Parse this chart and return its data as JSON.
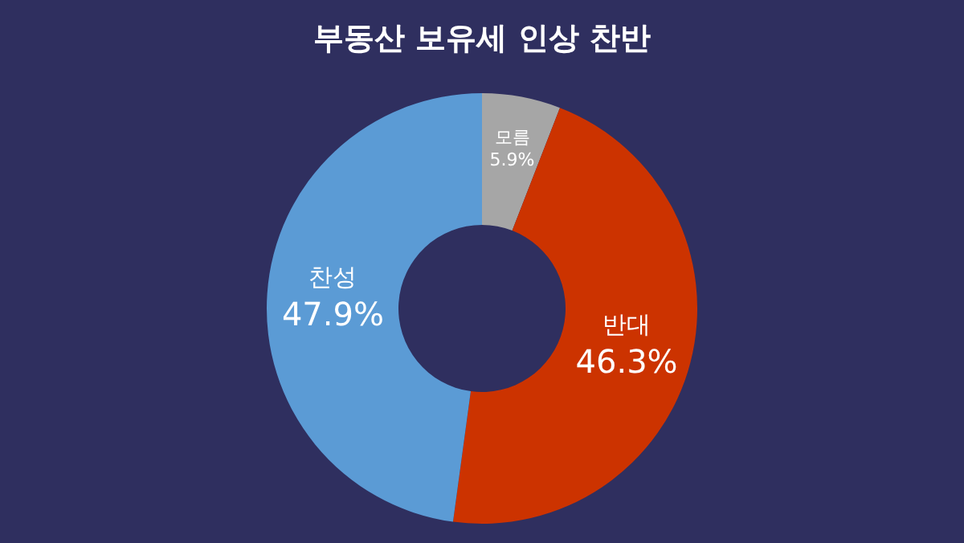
{
  "chart_data": {
    "type": "donut",
    "title": "부동산 보유세 인상 찬반",
    "categories": [
      "모름",
      "반대",
      "찬성"
    ],
    "values": [
      5.9,
      46.3,
      47.9
    ],
    "colors": [
      "#a6a6a6",
      "#cc3300",
      "#5b9bd5"
    ],
    "value_labels": [
      "5.9%",
      "46.3%",
      "47.9%"
    ]
  }
}
